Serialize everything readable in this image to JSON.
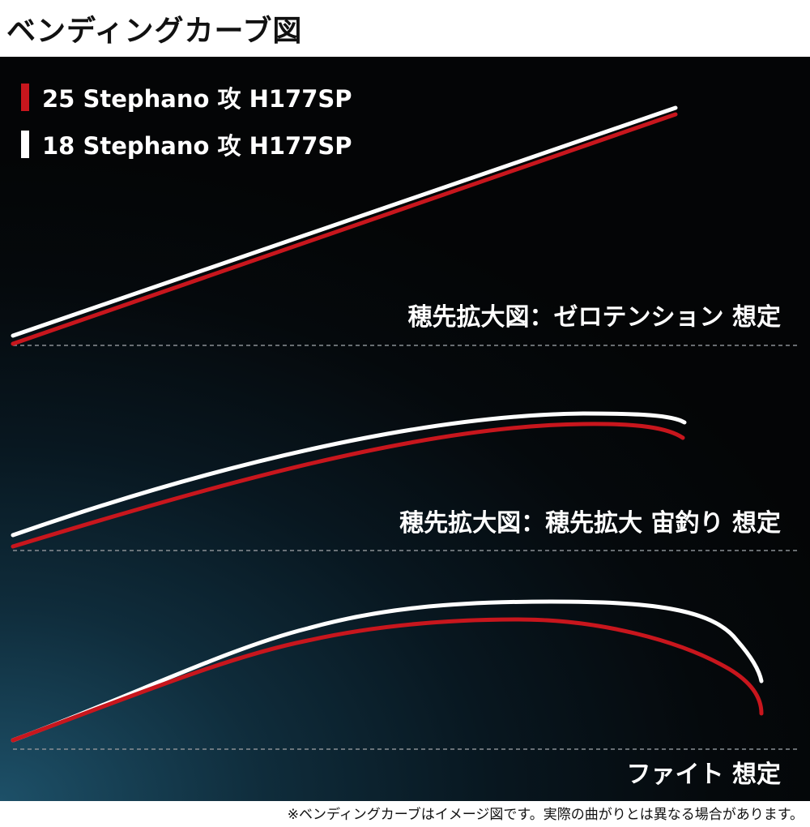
{
  "title": "ベンディングカーブ図",
  "legend": [
    {
      "label": "25 Stephano 攻 H177SP",
      "color": "#c8161d"
    },
    {
      "label": "18 Stephano 攻 H177SP",
      "color": "#ffffff"
    }
  ],
  "scenarios": [
    {
      "label": "穂先拡大図：ゼロテンション 想定"
    },
    {
      "label": "穂先拡大図：穂先拡大 宙釣り 想定"
    },
    {
      "label": "ファイト 想定"
    }
  ],
  "footnote": "※ベンディングカーブはイメージ図です。実際の曲がりとは異なる場合があります。",
  "colors": {
    "rod_25": "#c8161d",
    "rod_18": "#ffffff",
    "baseline": "#8a8f94"
  }
}
